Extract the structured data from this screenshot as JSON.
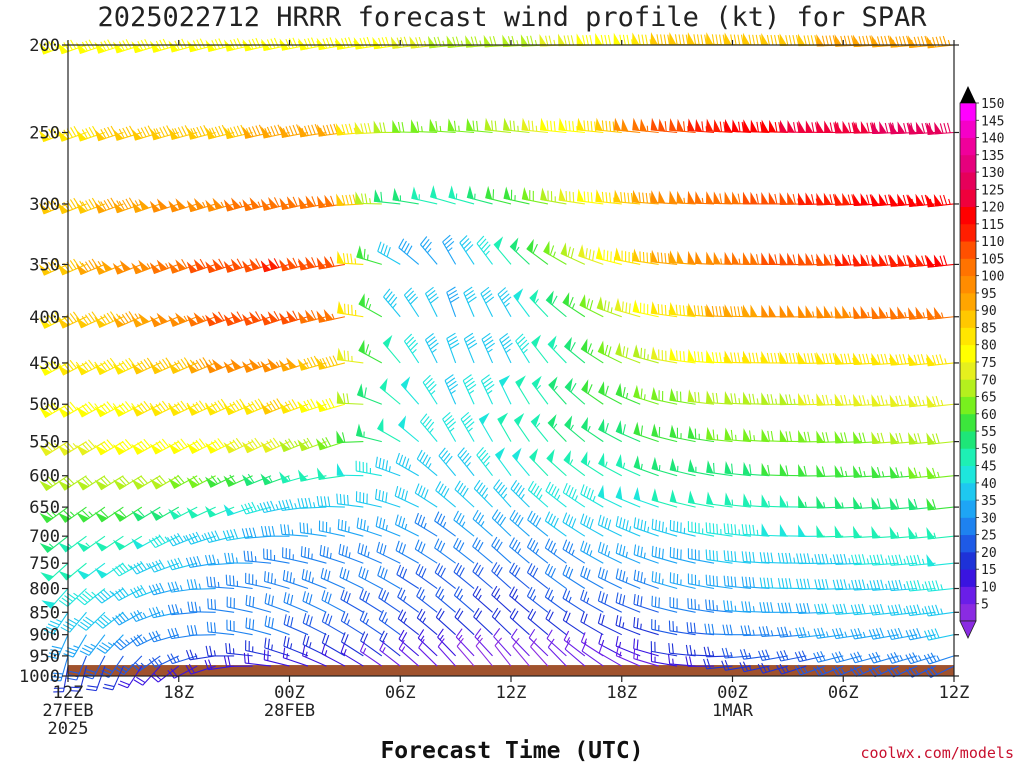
{
  "title": "2025022712 HRRR forecast wind profile (kt) for SPAR",
  "credit": "coolwx.com/models",
  "chart_data": {
    "type": "wind-barb-profile",
    "title": "2025022712 HRRR forecast wind profile (kt) for SPAR",
    "xlabel": "Forecast Time (UTC)",
    "ylabel": "",
    "x_range_hours": [
      0,
      48
    ],
    "y_range_hpa": [
      1000,
      200
    ],
    "y_scale": "log",
    "pressure_levels": [
      200,
      250,
      300,
      350,
      400,
      450,
      500,
      550,
      600,
      650,
      700,
      750,
      800,
      850,
      900,
      950,
      1000
    ],
    "y_ticks": [
      "200",
      "250",
      "300",
      "350",
      "400",
      "450",
      "500",
      "550",
      "600",
      "650",
      "700",
      "750",
      "800",
      "850",
      "900",
      "950",
      "1000"
    ],
    "x_ticks": [
      {
        "hour": 0,
        "lines": [
          "12Z",
          "27FEB",
          "2025"
        ]
      },
      {
        "hour": 6,
        "lines": [
          "18Z"
        ]
      },
      {
        "hour": 12,
        "lines": [
          "00Z",
          "28FEB"
        ]
      },
      {
        "hour": 18,
        "lines": [
          "06Z"
        ]
      },
      {
        "hour": 24,
        "lines": [
          "12Z"
        ]
      },
      {
        "hour": 30,
        "lines": [
          "18Z"
        ]
      },
      {
        "hour": 36,
        "lines": [
          "00Z",
          "1MAR"
        ]
      },
      {
        "hour": 42,
        "lines": [
          "06Z"
        ]
      },
      {
        "hour": 48,
        "lines": [
          "12Z"
        ]
      }
    ],
    "colorbar": {
      "unit": "kt",
      "levels": [
        5,
        10,
        15,
        20,
        25,
        30,
        35,
        40,
        45,
        50,
        55,
        60,
        65,
        70,
        75,
        80,
        85,
        90,
        95,
        100,
        105,
        110,
        115,
        120,
        125,
        130,
        135,
        140,
        145,
        150
      ],
      "colors": [
        "#8a2be2",
        "#6a1ee8",
        "#3a14e0",
        "#1e32d8",
        "#1e5ae6",
        "#1e82f0",
        "#1ea5f5",
        "#1ec8f0",
        "#1ee6dc",
        "#1ef0b4",
        "#1ee678",
        "#3ce63c",
        "#78f01e",
        "#b4f01e",
        "#e6f01e",
        "#ffff00",
        "#ffe600",
        "#ffc800",
        "#ffa500",
        "#ff8c00",
        "#ff7300",
        "#ff5000",
        "#ff1e00",
        "#ff0000",
        "#f0003c",
        "#e6005a",
        "#e6007d",
        "#f0009b",
        "#f500c8",
        "#ff00ff"
      ],
      "labels": [
        "5",
        "10",
        "15",
        "20",
        "25",
        "30",
        "35",
        "40",
        "45",
        "50",
        "55",
        "60",
        "65",
        "70",
        "75",
        "80",
        "85",
        "90",
        "95",
        "100",
        "105",
        "110",
        "115",
        "120",
        "125",
        "130",
        "135",
        "140",
        "145",
        "150"
      ]
    },
    "ground_color": "#a0522d",
    "wind_speed_kt_by_level": {
      "200": [
        80,
        80,
        82,
        82,
        84,
        84,
        80,
        74,
        72,
        76,
        82,
        90,
        92,
        94,
        95,
        95,
        96
      ],
      "250": [
        88,
        90,
        94,
        94,
        96,
        96,
        70,
        66,
        70,
        80,
        94,
        112,
        118,
        124,
        128,
        130,
        132
      ],
      "300": [
        92,
        96,
        100,
        104,
        108,
        108,
        58,
        50,
        60,
        74,
        86,
        100,
        108,
        112,
        118,
        122,
        124
      ],
      "350": [
        92,
        98,
        106,
        112,
        116,
        110,
        40,
        36,
        50,
        66,
        84,
        96,
        104,
        110,
        114,
        118,
        120
      ],
      "400": [
        88,
        94,
        102,
        110,
        114,
        106,
        44,
        38,
        44,
        58,
        74,
        86,
        96,
        100,
        104,
        106,
        106
      ],
      "450": [
        84,
        88,
        92,
        100,
        104,
        90,
        50,
        40,
        44,
        54,
        68,
        78,
        84,
        88,
        88,
        86,
        86
      ],
      "500": [
        80,
        84,
        86,
        88,
        90,
        80,
        50,
        44,
        48,
        56,
        62,
        68,
        72,
        74,
        76,
        76,
        76
      ],
      "550": [
        76,
        80,
        80,
        80,
        78,
        68,
        50,
        46,
        50,
        56,
        58,
        62,
        66,
        68,
        68,
        70,
        70
      ],
      "600": [
        70,
        72,
        70,
        64,
        56,
        50,
        44,
        42,
        48,
        52,
        54,
        56,
        58,
        60,
        62,
        64,
        66
      ],
      "650": [
        64,
        62,
        56,
        50,
        44,
        42,
        40,
        40,
        44,
        46,
        48,
        50,
        52,
        54,
        56,
        58,
        60
      ],
      "700": [
        56,
        52,
        46,
        42,
        38,
        36,
        36,
        34,
        38,
        40,
        42,
        44,
        46,
        48,
        50,
        52,
        54
      ],
      "750": [
        52,
        48,
        42,
        36,
        34,
        34,
        32,
        30,
        32,
        34,
        36,
        38,
        40,
        42,
        44,
        46,
        48
      ],
      "800": [
        48,
        44,
        38,
        34,
        34,
        32,
        30,
        28,
        28,
        30,
        32,
        36,
        38,
        40,
        42,
        44,
        46
      ],
      "850": [
        44,
        40,
        36,
        32,
        32,
        30,
        28,
        26,
        24,
        26,
        28,
        30,
        34,
        38,
        40,
        42,
        44
      ],
      "900": [
        38,
        36,
        32,
        30,
        30,
        28,
        26,
        22,
        20,
        20,
        22,
        26,
        30,
        34,
        36,
        38,
        40
      ],
      "950": [
        30,
        28,
        26,
        24,
        24,
        22,
        20,
        16,
        12,
        12,
        16,
        20,
        24,
        28,
        30,
        32,
        34
      ],
      "1000": [
        20,
        20,
        18,
        18,
        18,
        16,
        14,
        10,
        8,
        10,
        12,
        16,
        20,
        24,
        26,
        26,
        28
      ]
    },
    "wind_dir_deg_by_level": {
      "200": [
        250,
        252,
        254,
        256,
        258,
        260,
        262,
        264,
        266,
        268,
        270,
        272,
        272,
        270,
        268,
        266,
        264
      ],
      "250": [
        250,
        252,
        254,
        256,
        258,
        262,
        270,
        274,
        276,
        276,
        276,
        276,
        274,
        272,
        270,
        268,
        266
      ],
      "300": [
        248,
        250,
        252,
        254,
        256,
        262,
        276,
        286,
        284,
        280,
        276,
        274,
        272,
        270,
        268,
        266,
        264
      ],
      "350": [
        246,
        248,
        250,
        252,
        254,
        260,
        300,
        330,
        320,
        300,
        284,
        276,
        272,
        270,
        268,
        266,
        264
      ],
      "400": [
        244,
        246,
        248,
        250,
        252,
        258,
        320,
        340,
        330,
        310,
        290,
        278,
        272,
        270,
        268,
        266,
        264
      ],
      "450": [
        242,
        244,
        246,
        248,
        250,
        256,
        320,
        340,
        334,
        316,
        296,
        280,
        272,
        270,
        268,
        266,
        264
      ],
      "500": [
        240,
        242,
        244,
        246,
        248,
        254,
        310,
        336,
        334,
        318,
        298,
        282,
        274,
        270,
        268,
        266,
        264
      ],
      "550": [
        238,
        240,
        242,
        244,
        246,
        252,
        300,
        330,
        330,
        316,
        298,
        284,
        276,
        272,
        268,
        266,
        264
      ],
      "600": [
        236,
        238,
        240,
        244,
        250,
        262,
        290,
        320,
        324,
        312,
        298,
        286,
        278,
        272,
        268,
        266,
        264
      ],
      "650": [
        234,
        236,
        240,
        248,
        258,
        272,
        288,
        310,
        318,
        308,
        296,
        286,
        278,
        272,
        268,
        266,
        264
      ],
      "700": [
        232,
        236,
        244,
        256,
        270,
        282,
        292,
        306,
        314,
        306,
        296,
        286,
        278,
        272,
        268,
        266,
        264
      ],
      "750": [
        228,
        236,
        250,
        266,
        280,
        288,
        296,
        306,
        312,
        306,
        296,
        286,
        278,
        272,
        268,
        266,
        264
      ],
      "800": [
        222,
        236,
        256,
        274,
        286,
        294,
        300,
        308,
        312,
        306,
        296,
        286,
        278,
        272,
        268,
        266,
        264
      ],
      "850": [
        214,
        232,
        258,
        278,
        290,
        298,
        304,
        310,
        312,
        306,
        296,
        284,
        276,
        270,
        266,
        264,
        262
      ],
      "900": [
        204,
        224,
        254,
        276,
        290,
        300,
        306,
        312,
        314,
        308,
        296,
        282,
        272,
        266,
        262,
        260,
        258
      ],
      "950": [
        196,
        214,
        244,
        270,
        288,
        300,
        308,
        316,
        318,
        312,
        298,
        280,
        268,
        260,
        256,
        254,
        252
      ],
      "1000": [
        190,
        204,
        232,
        262,
        284,
        298,
        308,
        318,
        322,
        316,
        300,
        280,
        264,
        254,
        248,
        246,
        244
      ]
    }
  }
}
